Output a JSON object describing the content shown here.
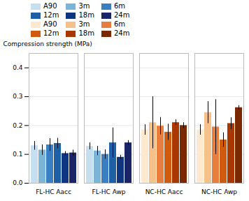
{
  "chart_data": {
    "type": "bar",
    "categories": [
      "FL-HC Aacc",
      "FL-HC Awp",
      "NC-HC Aacc",
      "NC-HC Awp"
    ],
    "series": [
      {
        "name": "A90",
        "colors": [
          "#c6dff0",
          "#c6dff0",
          "#fde8d0",
          "#fde8d0"
        ],
        "values": [
          0.13,
          0.128,
          0.185,
          0.185
        ],
        "errors": [
          0.015,
          0.012,
          0.018,
          0.018
        ]
      },
      {
        "name": "3m",
        "colors": [
          "#7ab4d8",
          "#7ab4d8",
          "#f5c08a",
          "#f5c08a"
        ],
        "values": [
          0.115,
          0.112,
          0.21,
          0.245
        ],
        "errors": [
          0.018,
          0.016,
          0.09,
          0.038
        ]
      },
      {
        "name": "6m",
        "colors": [
          "#3a7fc1",
          "#3a7fc1",
          "#e87d3e",
          "#e87d3e"
        ],
        "values": [
          0.133,
          0.1,
          0.198,
          0.195
        ],
        "errors": [
          0.022,
          0.016,
          0.03,
          0.095
        ]
      },
      {
        "name": "12m",
        "colors": [
          "#1f5fa6",
          "#1f5fa6",
          "#d05a0e",
          "#d05a0e"
        ],
        "values": [
          0.138,
          0.14,
          0.177,
          0.15
        ],
        "errors": [
          0.018,
          0.052,
          0.028,
          0.025
        ]
      },
      {
        "name": "18m",
        "colors": [
          "#0e3680",
          "#0e3680",
          "#a83800",
          "#a83800"
        ],
        "values": [
          0.103,
          0.09,
          0.21,
          0.207
        ],
        "errors": [
          0.007,
          0.007,
          0.01,
          0.02
        ]
      },
      {
        "name": "24m",
        "colors": [
          "#1a2568",
          "#1a2568",
          "#7a2800",
          "#7a2800"
        ],
        "values": [
          0.105,
          0.14,
          0.2,
          0.262
        ],
        "errors": [
          0.01,
          0.008,
          0.01,
          0.007
        ]
      }
    ],
    "ylabel": "Compression strength (MPa)",
    "ylim": [
      0.0,
      0.45
    ],
    "yticks": [
      {
        "value": 0.0,
        "label": "0.0"
      },
      0.1,
      0.2,
      0.3,
      0.4
    ],
    "grid": true,
    "legend": "upper left"
  }
}
